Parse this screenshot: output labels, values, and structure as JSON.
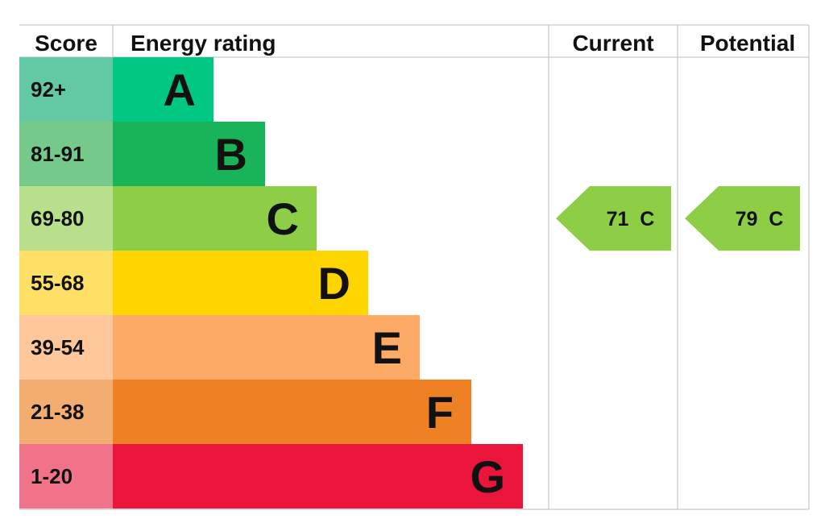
{
  "chart_data": {
    "type": "bar",
    "headers": {
      "score": "Score",
      "rating": "Energy rating",
      "current": "Current",
      "potential": "Potential"
    },
    "bands": [
      {
        "score": "92+",
        "letter": "A",
        "color": "#00c781",
        "score_bg": "#63c9a4"
      },
      {
        "score": "81-91",
        "letter": "B",
        "color": "#19b459",
        "score_bg": "#75c98a"
      },
      {
        "score": "69-80",
        "letter": "C",
        "color": "#8dce46",
        "score_bg": "#b8e08c"
      },
      {
        "score": "55-68",
        "letter": "D",
        "color": "#ffd500",
        "score_bg": "#ffe066"
      },
      {
        "score": "39-54",
        "letter": "E",
        "color": "#fcaa65",
        "score_bg": "#fdc79b"
      },
      {
        "score": "21-38",
        "letter": "F",
        "color": "#ef8023",
        "score_bg": "#f3ad70"
      },
      {
        "score": "1-20",
        "letter": "G",
        "color": "#e9153b",
        "score_bg": "#f07389"
      }
    ],
    "current": {
      "value": 71,
      "band": "C",
      "label": "71  C",
      "color": "#8dce46"
    },
    "potential": {
      "value": 79,
      "band": "C",
      "label": "79  C",
      "color": "#8dce46"
    }
  }
}
